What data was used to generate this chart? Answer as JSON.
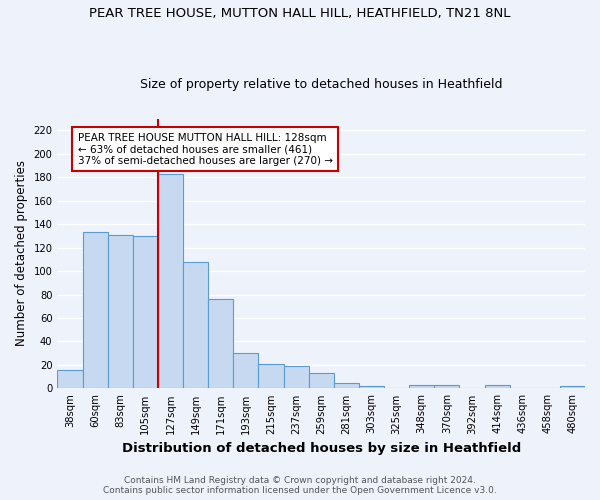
{
  "title": "PEAR TREE HOUSE, MUTTON HALL HILL, HEATHFIELD, TN21 8NL",
  "subtitle": "Size of property relative to detached houses in Heathfield",
  "xlabel": "Distribution of detached houses by size in Heathfield",
  "ylabel": "Number of detached properties",
  "bar_labels": [
    "38sqm",
    "60sqm",
    "83sqm",
    "105sqm",
    "127sqm",
    "149sqm",
    "171sqm",
    "193sqm",
    "215sqm",
    "237sqm",
    "259sqm",
    "281sqm",
    "303sqm",
    "325sqm",
    "348sqm",
    "370sqm",
    "392sqm",
    "414sqm",
    "436sqm",
    "458sqm",
    "480sqm"
  ],
  "bar_values": [
    16,
    133,
    131,
    130,
    183,
    108,
    76,
    30,
    21,
    19,
    13,
    5,
    2,
    0,
    3,
    3,
    0,
    3,
    0,
    0,
    2
  ],
  "bar_color": "#c6d9f0",
  "bar_edge_color": "#5b9bd5",
  "vline_x_index": 4,
  "vline_color": "#cc0000",
  "annotation_text": "PEAR TREE HOUSE MUTTON HALL HILL: 128sqm\n← 63% of detached houses are smaller (461)\n37% of semi-detached houses are larger (270) →",
  "annotation_box_color": "#ffffff",
  "annotation_box_edge": "#cc0000",
  "ylim": [
    0,
    230
  ],
  "yticks": [
    0,
    20,
    40,
    60,
    80,
    100,
    120,
    140,
    160,
    180,
    200,
    220
  ],
  "footer_line1": "Contains HM Land Registry data © Crown copyright and database right 2024.",
  "footer_line2": "Contains public sector information licensed under the Open Government Licence v3.0.",
  "background_color": "#eef2fb",
  "grid_color": "#ffffff",
  "title_fontsize": 9.5,
  "subtitle_fontsize": 9,
  "xlabel_fontsize": 9.5,
  "ylabel_fontsize": 8.5,
  "tick_fontsize": 7.2,
  "footer_fontsize": 6.5,
  "annotation_fontsize": 7.5
}
